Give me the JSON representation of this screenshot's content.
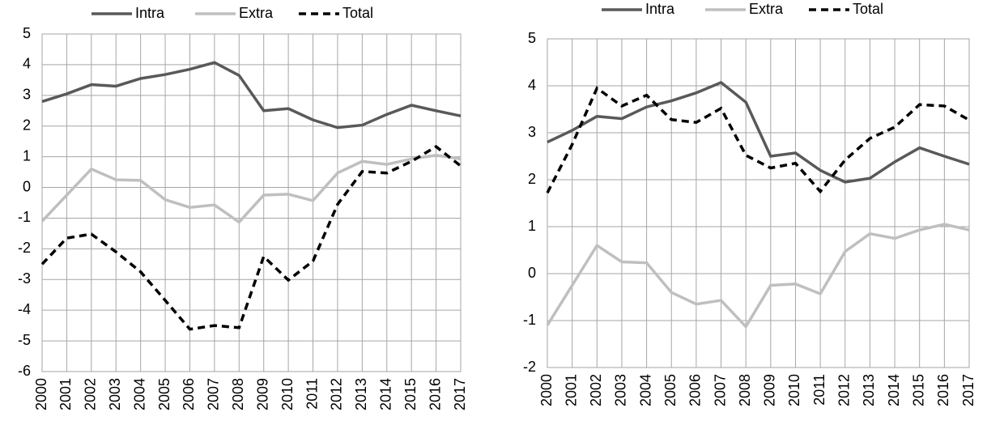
{
  "chart_data": [
    {
      "type": "line",
      "categories": [
        "2000",
        "2001",
        "2002",
        "2003",
        "2004",
        "2005",
        "2006",
        "2007",
        "2008",
        "2009",
        "2010",
        "2011",
        "2012",
        "2013",
        "2014",
        "2015",
        "2016",
        "2017"
      ],
      "series": [
        {
          "name": "Intra",
          "color": "#595959",
          "style": "solid",
          "values": [
            2.8,
            3.05,
            3.35,
            3.3,
            3.55,
            3.68,
            3.85,
            4.07,
            3.65,
            2.5,
            2.57,
            2.2,
            1.95,
            2.03,
            2.38,
            2.68,
            2.5,
            2.33
          ]
        },
        {
          "name": "Extra",
          "color": "#bfbfbf",
          "style": "solid",
          "values": [
            -1.1,
            -0.25,
            0.6,
            0.25,
            0.23,
            -0.4,
            -0.65,
            -0.57,
            -1.13,
            -0.25,
            -0.22,
            -0.43,
            0.47,
            0.85,
            0.75,
            0.93,
            1.05,
            0.93
          ]
        },
        {
          "name": "Total",
          "color": "#000000",
          "style": "dashed",
          "values": [
            -2.5,
            -1.65,
            -1.52,
            -2.1,
            -2.75,
            -3.68,
            -4.62,
            -4.5,
            -4.57,
            -2.25,
            -3.02,
            -2.4,
            -0.55,
            0.52,
            0.47,
            0.85,
            1.33,
            0.7
          ]
        }
      ],
      "ylim": [
        -6,
        5
      ],
      "yticks": [
        -6,
        -5,
        -4,
        -3,
        -2,
        -1,
        0,
        1,
        2,
        3,
        4,
        5
      ],
      "grid": true,
      "legend": "top"
    },
    {
      "type": "line",
      "categories": [
        "2000",
        "2001",
        "2002",
        "2003",
        "2004",
        "2005",
        "2006",
        "2007",
        "2008",
        "2009",
        "2010",
        "2011",
        "2012",
        "2013",
        "2014",
        "2015",
        "2016",
        "2017"
      ],
      "series": [
        {
          "name": "Intra",
          "color": "#595959",
          "style": "solid",
          "values": [
            2.8,
            3.05,
            3.35,
            3.3,
            3.55,
            3.68,
            3.85,
            4.07,
            3.65,
            2.5,
            2.57,
            2.2,
            1.95,
            2.03,
            2.38,
            2.68,
            2.5,
            2.33
          ]
        },
        {
          "name": "Extra",
          "color": "#bfbfbf",
          "style": "solid",
          "values": [
            -1.1,
            -0.25,
            0.6,
            0.25,
            0.23,
            -0.4,
            -0.65,
            -0.57,
            -1.13,
            -0.25,
            -0.22,
            -0.43,
            0.47,
            0.85,
            0.75,
            0.93,
            1.05,
            0.93
          ]
        },
        {
          "name": "Total",
          "color": "#000000",
          "style": "dashed",
          "values": [
            1.72,
            2.75,
            3.95,
            3.57,
            3.8,
            3.28,
            3.22,
            3.52,
            2.52,
            2.25,
            2.35,
            1.75,
            2.42,
            2.88,
            3.12,
            3.6,
            3.57,
            3.27
          ]
        }
      ],
      "ylim": [
        -2,
        5
      ],
      "yticks": [
        -2,
        -1,
        0,
        1,
        2,
        3,
        4,
        5
      ],
      "grid": true,
      "legend": "top"
    }
  ]
}
